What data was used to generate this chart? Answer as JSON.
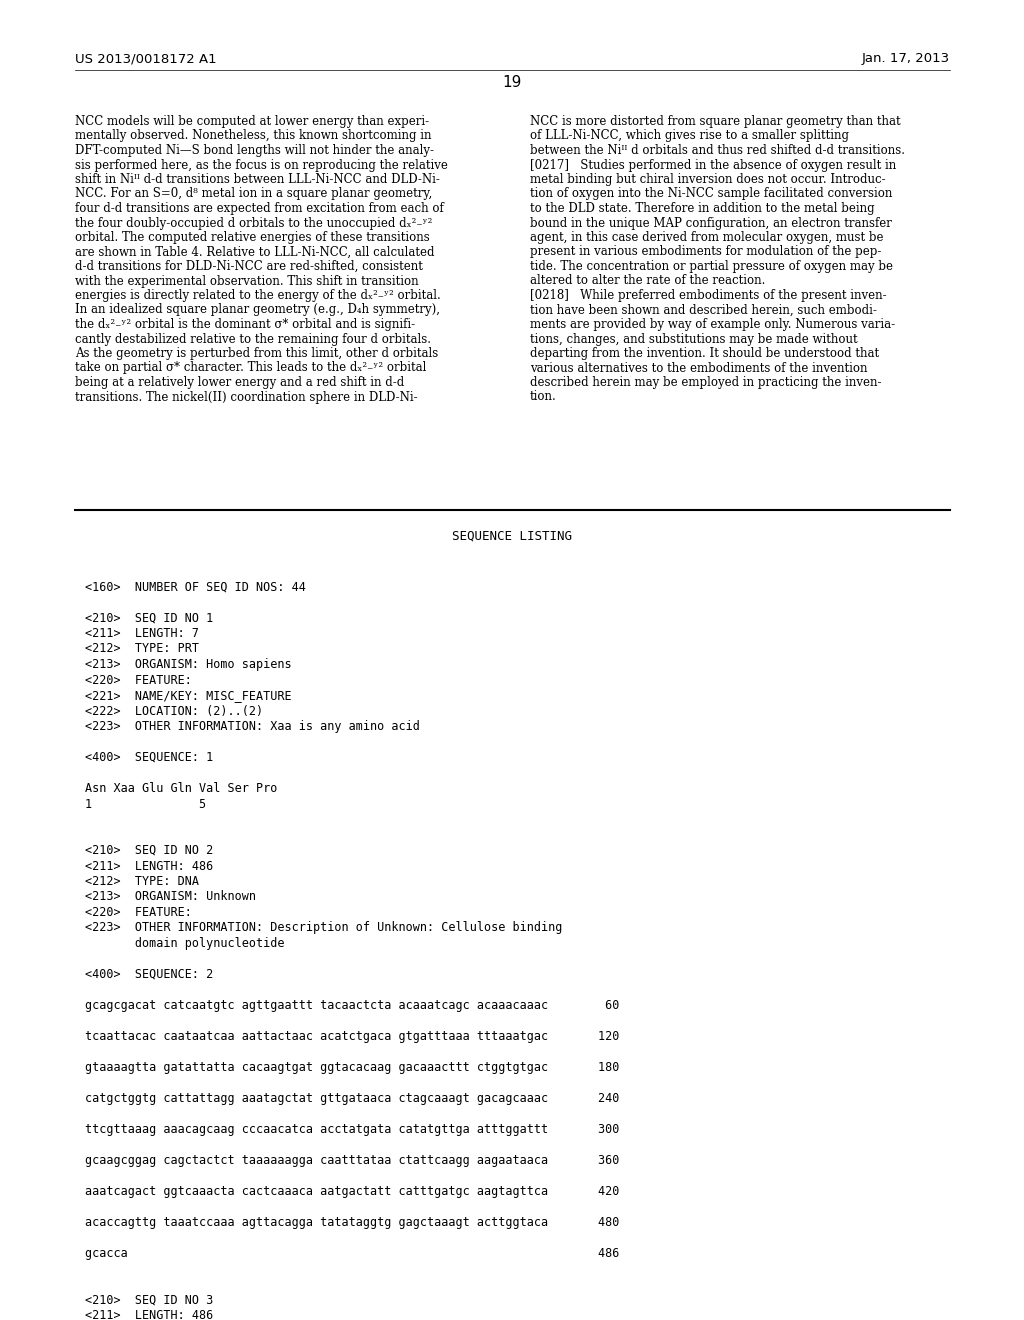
{
  "background_color": "#ffffff",
  "page_width": 10.24,
  "page_height": 13.2,
  "header_left": "US 2013/0018172 A1",
  "header_right": "Jan. 17, 2013",
  "page_number": "19",
  "left_column_text": [
    "NCC models will be computed at lower energy than experi-",
    "mentally observed. Nonetheless, this known shortcoming in",
    "DFT-computed Ni—S bond lengths will not hinder the analy-",
    "sis performed here, as the focus is on reproducing the relative",
    "shift in Niᴵᴵ d-d transitions between LLL-Ni-NCC and DLD-Ni-",
    "NCC. For an S=0, d⁸ metal ion in a square planar geometry,",
    "four d-d transitions are expected from excitation from each of",
    "the four doubly-occupied d orbitals to the unoccupied dₓ²₋ʸ²",
    "orbital. The computed relative energies of these transitions",
    "are shown in Table 4. Relative to LLL-Ni-NCC, all calculated",
    "d-d transitions for DLD-Ni-NCC are red-shifted, consistent",
    "with the experimental observation. This shift in transition",
    "energies is directly related to the energy of the dₓ²₋ʸ² orbital.",
    "In an idealized square planar geometry (e.g., D₄h symmetry),",
    "the dₓ²₋ʸ² orbital is the dominant σ* orbital and is signifi-",
    "cantly destabilized relative to the remaining four d orbitals.",
    "As the geometry is perturbed from this limit, other d orbitals",
    "take on partial σ* character. This leads to the dₓ²₋ʸ² orbital",
    "being at a relatively lower energy and a red shift in d-d",
    "transitions. The nickel(II) coordination sphere in DLD-Ni-"
  ],
  "right_column_text": [
    "NCC is more distorted from square planar geometry than that",
    "of LLL-Ni-NCC, which gives rise to a smaller splitting",
    "between the Niᴵᴵ d orbitals and thus red shifted d-d transitions.",
    "[0217]   Studies performed in the absence of oxygen result in",
    "metal binding but chiral inversion does not occur. Introduc-",
    "tion of oxygen into the Ni-NCC sample facilitated conversion",
    "to the DLD state. Therefore in addition to the metal being",
    "bound in the unique MAP configuration, an electron transfer",
    "agent, in this case derived from molecular oxygen, must be",
    "present in various embodiments for modulation of the pep-",
    "tide. The concentration or partial pressure of oxygen may be",
    "altered to alter the rate of the reaction.",
    "[0218]   While preferred embodiments of the present inven-",
    "tion have been shown and described herein, such embodi-",
    "ments are provided by way of example only. Numerous varia-",
    "tions, changes, and substitutions may be made without",
    "departing from the invention. It should be understood that",
    "various alternatives to the embodiments of the invention",
    "described herein may be employed in practicing the inven-",
    "tion."
  ],
  "sequence_listing_title": "SEQUENCE LISTING",
  "sequence_text": [
    "",
    "<160>  NUMBER OF SEQ ID NOS: 44",
    "",
    "<210>  SEQ ID NO 1",
    "<211>  LENGTH: 7",
    "<212>  TYPE: PRT",
    "<213>  ORGANISM: Homo sapiens",
    "<220>  FEATURE:",
    "<221>  NAME/KEY: MISC_FEATURE",
    "<222>  LOCATION: (2)..(2)",
    "<223>  OTHER INFORMATION: Xaa is any amino acid",
    "",
    "<400>  SEQUENCE: 1",
    "",
    "Asn Xaa Glu Gln Val Ser Pro",
    "1               5",
    "",
    "",
    "<210>  SEQ ID NO 2",
    "<211>  LENGTH: 486",
    "<212>  TYPE: DNA",
    "<213>  ORGANISM: Unknown",
    "<220>  FEATURE:",
    "<223>  OTHER INFORMATION: Description of Unknown: Cellulose binding",
    "       domain polynucleotide",
    "",
    "<400>  SEQUENCE: 2",
    "",
    "gcagcgacat catcaatgtc agttgaattt tacaactcta acaaatcagc acaaacaaac        60",
    "",
    "tcaattacac caataatcaa aattactaac acatctgaca gtgatttaaa tttaaatgac       120",
    "",
    "gtaaaagtta gatattatta cacaagtgat ggtacacaag gacaaacttt ctggtgtgac       180",
    "",
    "catgctggtg cattattagg aaatagctat gttgataaca ctagcaaagt gacagcaaac       240",
    "",
    "ttcgttaaag aaacagcaag cccaacatca acctatgata catatgttga atttggattt       300",
    "",
    "gcaagcggag cagctactct taaaaaagga caatttataa ctattcaagg aagaataaca       360",
    "",
    "aaatcagact ggtcaaacta cactcaaaca aatgactatt catttgatgc aagtagttca       420",
    "",
    "acaccagttg taaatccaaa agttacagga tatataggtg gagctaaagt acttggtaca       480",
    "",
    "gcacca                                                                  486",
    "",
    "",
    "<210>  SEQ ID NO 3",
    "<211>  LENGTH: 486"
  ]
}
